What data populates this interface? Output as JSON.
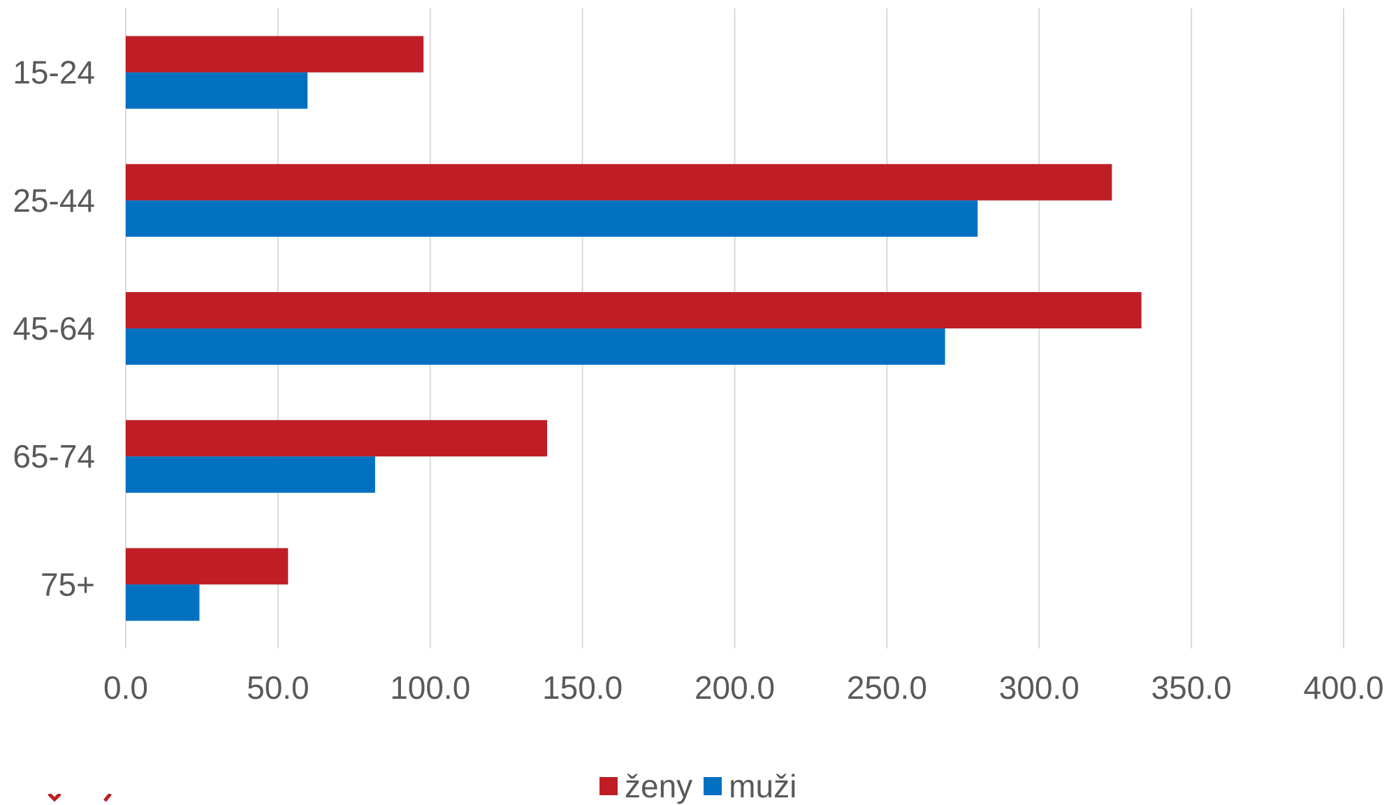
{
  "chart_data": {
    "type": "bar",
    "orientation": "horizontal",
    "categories": [
      "15-24",
      "25-44",
      "45-64",
      "65-74",
      "75+"
    ],
    "series": [
      {
        "name": "ženy",
        "color": "#be1e24",
        "values": [
          97.8,
          323.9,
          333.6,
          138.4,
          53.3
        ]
      },
      {
        "name": "muži",
        "color": "#0070c0",
        "values": [
          59.7,
          279.8,
          269.1,
          81.9,
          24.2
        ]
      }
    ],
    "xlim": [
      0,
      400
    ],
    "xticks": [
      "0.0",
      "50.0",
      "100.0",
      "150.0",
      "200.0",
      "250.0",
      "300.0",
      "350.0",
      "400.0"
    ],
    "grid": true,
    "legend_position": "bottom"
  }
}
